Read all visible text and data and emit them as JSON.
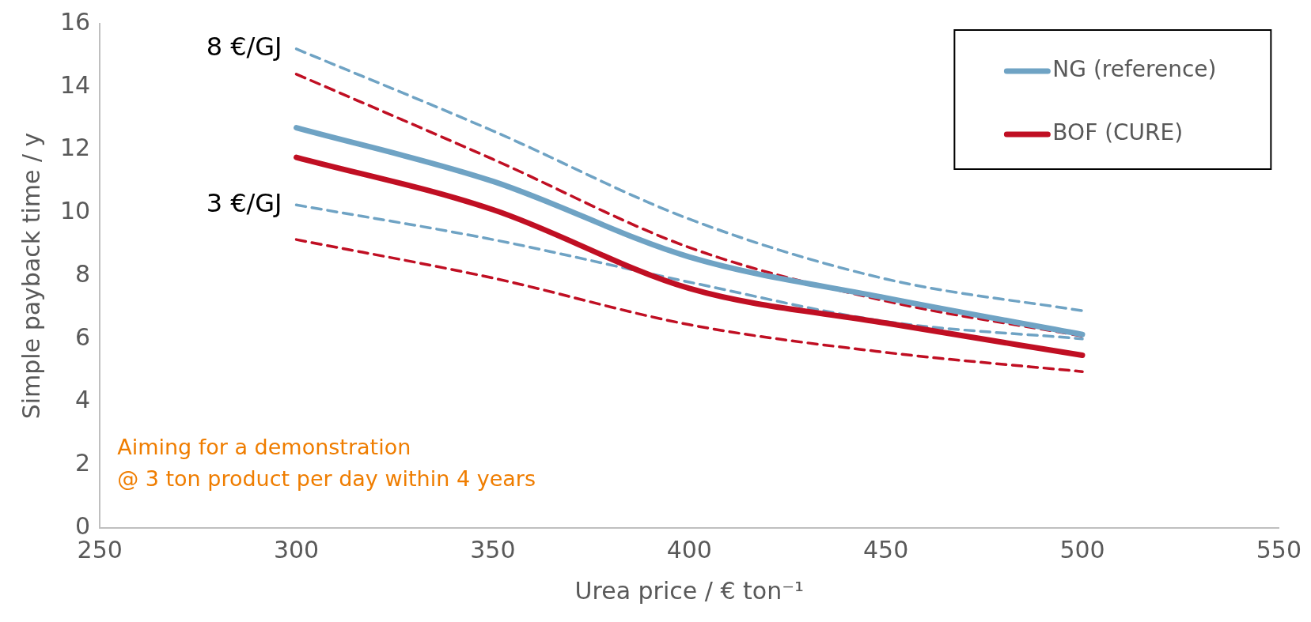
{
  "chart_data": {
    "type": "line",
    "xlabel": "Urea price / € ton⁻¹",
    "ylabel": "Simple payback time / y",
    "x": [
      300,
      350,
      400,
      450,
      500
    ],
    "xlim": [
      250,
      550
    ],
    "xticks": [
      250,
      300,
      350,
      400,
      450,
      500,
      550
    ],
    "ylim": [
      0,
      16
    ],
    "yticks": [
      0,
      2,
      4,
      6,
      8,
      10,
      12,
      14,
      16
    ],
    "grid": false,
    "legend": "top right",
    "marker": "none",
    "series": [
      {
        "name": "NG (reference)",
        "color": "#6fa3c4",
        "line_style": "solid",
        "values": [
          12.7,
          11.0,
          8.6,
          7.3,
          6.14
        ]
      },
      {
        "name": "BOF (CURE)",
        "color": "#c00f23",
        "line_style": "solid",
        "values": [
          11.76,
          10.1,
          7.6,
          6.5,
          5.48
        ]
      },
      {
        "color": "#6fa3c4",
        "line_style": "dashed",
        "values": [
          15.2,
          12.6,
          9.8,
          7.9,
          6.89
        ]
      },
      {
        "color": "#c00f23",
        "line_style": "dashed",
        "values": [
          14.4,
          11.7,
          8.9,
          7.2,
          6.09
        ]
      },
      {
        "color": "#6fa3c4",
        "line_style": "dashed",
        "values": [
          10.25,
          9.15,
          7.8,
          6.55,
          6.0
        ]
      },
      {
        "color": "#c00f23",
        "line_style": "dashed",
        "values": [
          9.15,
          7.93,
          6.45,
          5.57,
          4.96
        ]
      }
    ],
    "annotations": [
      {
        "text": "8 €/GJ",
        "x": 300,
        "y": 15.2
      },
      {
        "text": "3 €/GJ",
        "x": 300,
        "y": 10.25
      },
      "Aiming for a demonstration",
      "@ 3 ton product per day within 4 years"
    ]
  }
}
